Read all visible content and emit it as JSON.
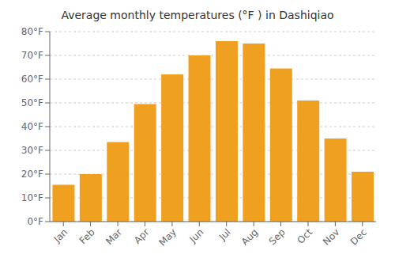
{
  "chart_data": {
    "type": "bar",
    "title": "Average monthly temperatures (°F ) in Dashiqiao",
    "categories": [
      "Jan",
      "Feb",
      "Mar",
      "Apr",
      "May",
      "Jun",
      "Jul",
      "Aug",
      "Sep",
      "Oct",
      "Nov",
      "Dec"
    ],
    "values": [
      15.5,
      20.0,
      33.5,
      49.5,
      62.0,
      70.0,
      76.0,
      75.0,
      64.5,
      51.0,
      35.0,
      21.0
    ],
    "color": "#F0A020",
    "ylim": [
      0,
      80
    ],
    "yticks": [
      {
        "value": 0,
        "label": "0°F"
      },
      {
        "value": 10,
        "label": "10°F"
      },
      {
        "value": 20,
        "label": "20°F"
      },
      {
        "value": 30,
        "label": "30°F"
      },
      {
        "value": 40,
        "label": "40°F"
      },
      {
        "value": 50,
        "label": "50°F"
      },
      {
        "value": 60,
        "label": "60°F"
      },
      {
        "value": 70,
        "label": "70°F"
      },
      {
        "value": 80,
        "label": "80°F"
      }
    ],
    "grid": true
  }
}
